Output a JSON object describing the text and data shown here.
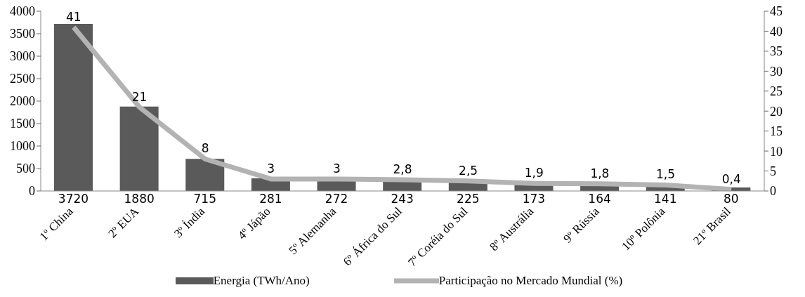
{
  "chart_data": {
    "type": "bar",
    "categories": [
      "1º China",
      "2º EUA",
      "3º Índia",
      "4º Jápão",
      "5º Alemanha",
      "6º África do Sul",
      "7º Coréia do Sul",
      "8º Austrália",
      "9º Rússia",
      "10º Polônia",
      "21º Brasil"
    ],
    "series": [
      {
        "name": "Energia (TWh/Ano)",
        "color": "#5a5a5a",
        "values": [
          3720,
          1880,
          715,
          281,
          272,
          243,
          225,
          173,
          164,
          141,
          80
        ],
        "value_labels": [
          "3720",
          "1880",
          "715",
          "281",
          "272",
          "243",
          "225",
          "173",
          "164",
          "141",
          "80"
        ]
      },
      {
        "name": "Participação no Mercado Mundial (%)",
        "type": "line",
        "axis": "y2",
        "color": "#b3b3b3",
        "values": [
          41,
          21,
          8,
          3,
          3,
          2.8,
          2.5,
          1.9,
          1.8,
          1.5,
          0.4
        ],
        "value_labels": [
          "41",
          "21",
          "8",
          "3",
          "3",
          "2,8",
          "2,5",
          "1,9",
          "1,8",
          "1,5",
          "0,4"
        ]
      }
    ],
    "ylim": [
      0,
      4000
    ],
    "yticks": [
      0,
      500,
      1000,
      1500,
      2000,
      2500,
      3000,
      3500,
      4000
    ],
    "y2lim": [
      0,
      45
    ],
    "y2ticks": [
      0,
      5,
      10,
      15,
      20,
      25,
      30,
      35,
      40,
      45
    ],
    "grid": false,
    "legend": "bottom",
    "marker": "none",
    "line_style": "solid"
  }
}
